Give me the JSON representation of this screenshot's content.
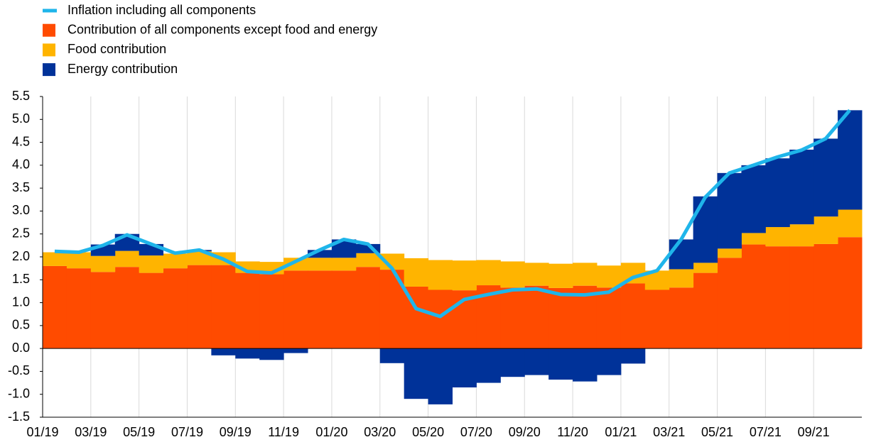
{
  "chart_data": {
    "type": "bar",
    "stacked": true,
    "categories": [
      "01/19",
      null,
      "03/19",
      null,
      "05/19",
      null,
      "07/19",
      null,
      "09/19",
      null,
      "11/19",
      null,
      "01/20",
      null,
      "03/20",
      null,
      "05/20",
      null,
      "07/20",
      null,
      "09/20",
      null,
      "11/20",
      null,
      "01/21",
      null,
      "03/21",
      null,
      "05/21",
      null,
      "07/21",
      null,
      "09/21",
      null
    ],
    "series": [
      {
        "name": "Inflation including all components",
        "type": "line",
        "color": "#1fb5ea",
        "values": [
          2.12,
          2.1,
          2.25,
          2.48,
          2.28,
          2.08,
          2.15,
          1.95,
          1.68,
          1.65,
          1.9,
          2.15,
          2.38,
          2.28,
          1.75,
          0.87,
          0.7,
          1.07,
          1.18,
          1.28,
          1.3,
          1.18,
          1.17,
          1.23,
          1.55,
          1.7,
          2.38,
          3.3,
          3.83,
          4.0,
          4.18,
          4.33,
          4.58,
          5.2
        ]
      },
      {
        "name": "Contribution of all components except food and energy",
        "type": "bar",
        "color": "#ff4b00",
        "values": [
          1.8,
          1.75,
          1.67,
          1.78,
          1.65,
          1.75,
          1.82,
          1.82,
          1.65,
          1.62,
          1.7,
          1.7,
          1.7,
          1.78,
          1.72,
          1.35,
          1.28,
          1.27,
          1.38,
          1.33,
          1.37,
          1.32,
          1.37,
          1.33,
          1.42,
          1.28,
          1.33,
          1.65,
          1.98,
          2.27,
          2.23,
          2.23,
          2.28,
          2.43
        ]
      },
      {
        "name": "Food contribution",
        "type": "bar",
        "color": "#ffb400",
        "values": [
          0.3,
          0.35,
          0.35,
          0.35,
          0.38,
          0.32,
          0.3,
          0.28,
          0.25,
          0.27,
          0.28,
          0.28,
          0.28,
          0.3,
          0.35,
          0.62,
          0.65,
          0.65,
          0.55,
          0.57,
          0.5,
          0.53,
          0.5,
          0.48,
          0.45,
          0.42,
          0.4,
          0.22,
          0.2,
          0.25,
          0.42,
          0.48,
          0.6,
          0.6
        ]
      },
      {
        "name": "Energy contribution",
        "type": "bar",
        "color": "#003299",
        "values": [
          0.0,
          0.0,
          0.25,
          0.37,
          0.25,
          0.0,
          0.03,
          -0.15,
          -0.22,
          -0.25,
          -0.1,
          0.17,
          0.4,
          0.2,
          -0.32,
          -1.1,
          -1.22,
          -0.85,
          -0.75,
          -0.62,
          -0.58,
          -0.68,
          -0.72,
          -0.58,
          -0.33,
          0.0,
          0.65,
          1.45,
          1.65,
          1.48,
          1.5,
          1.63,
          1.7,
          2.17
        ]
      }
    ],
    "ylim": [
      -1.5,
      5.5
    ],
    "yticks": [
      {
        "value": -1.5,
        "label": "-1.5"
      },
      {
        "value": -1,
        "label": "-1.0"
      },
      {
        "value": -0.5,
        "label": "-0.5"
      },
      {
        "value": 0,
        "label": "0.0"
      },
      0.5,
      {
        "value": 1,
        "label": "1.0"
      },
      1.5,
      {
        "value": 2,
        "label": "2.0"
      },
      2.5,
      {
        "value": 3,
        "label": "3.0"
      },
      3.5,
      {
        "value": 4,
        "label": "4.0"
      },
      4.5,
      {
        "value": 5,
        "label": "5.0"
      },
      5.5
    ],
    "grid": "x",
    "legend": "top-left"
  }
}
